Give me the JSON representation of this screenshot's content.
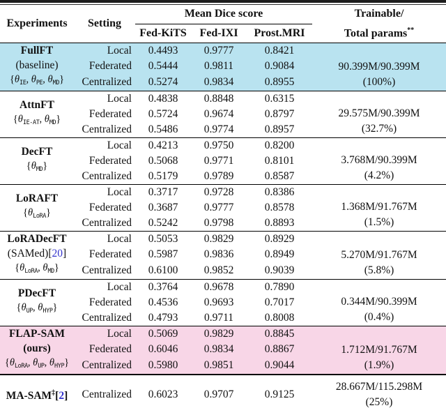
{
  "colors": {
    "highlight_blue": "#b9e3f0",
    "highlight_pink": "#f8d6e7",
    "cite_blue": "#3333cc"
  },
  "header": {
    "experiments": "Experiments",
    "setting": "Setting",
    "dice_group": "Mean Dice score",
    "datasets": [
      "Fed-KiTS",
      "Fed-IXI",
      "Prost.MRI"
    ],
    "params_line1": "Trainable/",
    "params_line2": "Total params",
    "params_sup": "**"
  },
  "groups": [
    {
      "highlight": "blue",
      "rule": "thin",
      "label_lines": [
        {
          "type": "name",
          "text": "FullFT"
        },
        {
          "type": "plain",
          "text": "(baseline)"
        },
        {
          "type": "thetas",
          "subs": [
            "IE",
            "PE",
            "MD"
          ]
        }
      ],
      "rows": [
        {
          "setting": "Local",
          "kits": "0.4493",
          "ixi": "0.9777",
          "prost": "0.8421"
        },
        {
          "setting": "Federated",
          "kits": "0.5444",
          "ixi": "0.9811",
          "prost": "0.9084"
        },
        {
          "setting": "Centralized",
          "kits": "0.5274",
          "ixi": "0.9834",
          "prost": "0.8955"
        }
      ],
      "params": {
        "value": "90.399M/90.399M",
        "pct": "(100%)"
      }
    },
    {
      "highlight": null,
      "rule": "thin",
      "label_lines": [
        {
          "type": "name",
          "text": "AttnFT"
        },
        {
          "type": "thetas",
          "subs": [
            "IE-AT",
            "MD"
          ]
        }
      ],
      "rows": [
        {
          "setting": "Local",
          "kits": "0.4838",
          "ixi": "0.8848",
          "prost": "0.6315"
        },
        {
          "setting": "Federated",
          "kits": "0.5724",
          "ixi": "0.9674",
          "prost": "0.8797"
        },
        {
          "setting": "Centralized",
          "kits": "0.5486",
          "ixi": "0.9774",
          "prost": "0.8957"
        }
      ],
      "params": {
        "value": "29.575M/90.399M",
        "pct": "(32.7%)"
      }
    },
    {
      "highlight": null,
      "rule": "thin",
      "label_lines": [
        {
          "type": "name",
          "text": "DecFT"
        },
        {
          "type": "thetas",
          "subs": [
            "MD"
          ]
        }
      ],
      "rows": [
        {
          "setting": "Local",
          "kits": "0.4213",
          "ixi": "0.9750",
          "prost": "0.8200"
        },
        {
          "setting": "Federated",
          "kits": "0.5068",
          "ixi": "0.9771",
          "prost": "0.8101"
        },
        {
          "setting": "Centralized",
          "kits": "0.5179",
          "ixi": "0.9789",
          "prost": "0.8587"
        }
      ],
      "params": {
        "value": "3.768M/90.399M",
        "pct": "(4.2%)"
      }
    },
    {
      "highlight": null,
      "rule": "thin",
      "label_lines": [
        {
          "type": "name",
          "text": "LoRAFT"
        },
        {
          "type": "thetas",
          "subs": [
            "LoRA"
          ]
        }
      ],
      "rows": [
        {
          "setting": "Local",
          "kits": "0.3717",
          "ixi": "0.9728",
          "prost": "0.8386"
        },
        {
          "setting": "Federated",
          "kits": "0.3687",
          "ixi": "0.9777",
          "prost": "0.8578"
        },
        {
          "setting": "Centralized",
          "kits": "0.5242",
          "ixi": "0.9798",
          "prost": "0.8893"
        }
      ],
      "params": {
        "value": "1.368M/91.767M",
        "pct": "(1.5%)"
      }
    },
    {
      "highlight": null,
      "rule": "thin",
      "label_lines": [
        {
          "type": "name",
          "text": "LoRADecFT"
        },
        {
          "type": "plain",
          "text": "(SAMed)",
          "cite": "20"
        },
        {
          "type": "thetas",
          "subs": [
            "LoRA",
            "MD"
          ]
        }
      ],
      "rows": [
        {
          "setting": "Local",
          "kits": "0.5053",
          "ixi": "0.9829",
          "prost": "0.8929"
        },
        {
          "setting": "Federated",
          "kits": "0.5987",
          "ixi": "0.9836",
          "prost": "0.8949"
        },
        {
          "setting": "Centralized",
          "kits": "0.6100",
          "ixi": "0.9852",
          "prost": "0.9039"
        }
      ],
      "params": {
        "value": "5.270M/91.767M",
        "pct": "(5.8%)"
      }
    },
    {
      "highlight": null,
      "rule": "thin",
      "label_lines": [
        {
          "type": "name",
          "text": "PDecFT"
        },
        {
          "type": "thetas",
          "subs": [
            "UP",
            "HYP"
          ]
        }
      ],
      "rows": [
        {
          "setting": "Local",
          "kits": "0.3764",
          "ixi": "0.9678",
          "prost": "0.7890"
        },
        {
          "setting": "Federated",
          "kits": "0.4536",
          "ixi": "0.9693",
          "prost": "0.7017"
        },
        {
          "setting": "Centralized",
          "kits": "0.4793",
          "ixi": "0.9711",
          "prost": "0.8008"
        }
      ],
      "params": {
        "value": "0.344M/90.399M",
        "pct": "(0.4%)"
      }
    },
    {
      "highlight": "pink",
      "rule": "thin",
      "label_lines": [
        {
          "type": "name",
          "text": "FLAP-SAM"
        },
        {
          "type": "plain",
          "text": "(ours)",
          "bold": true
        },
        {
          "type": "thetas",
          "subs": [
            "LoRA",
            "UP",
            "HYP"
          ]
        }
      ],
      "rows": [
        {
          "setting": "Local",
          "kits": "0.5069",
          "ixi": "0.9829",
          "prost": "0.8845"
        },
        {
          "setting": "Federated",
          "kits": "0.6046",
          "ixi": "0.9834",
          "prost": "0.8867"
        },
        {
          "setting": "Centralized",
          "kits": "0.5980",
          "ixi": "0.9851",
          "prost": "0.9044"
        }
      ],
      "params": {
        "value": "1.712M/91.767M",
        "pct": "(1.9%)"
      }
    },
    {
      "highlight": null,
      "rule": "thick",
      "label_lines": [
        {
          "type": "name",
          "text": "MA-SAM",
          "sup": "‡",
          "cite": "2"
        }
      ],
      "rows": [
        {
          "setting": "Centralized",
          "kits": "0.6023",
          "ixi": "0.9707",
          "prost": "0.9125"
        }
      ],
      "params": {
        "value": "28.667M/115.298M",
        "pct": "(25%)"
      }
    }
  ]
}
